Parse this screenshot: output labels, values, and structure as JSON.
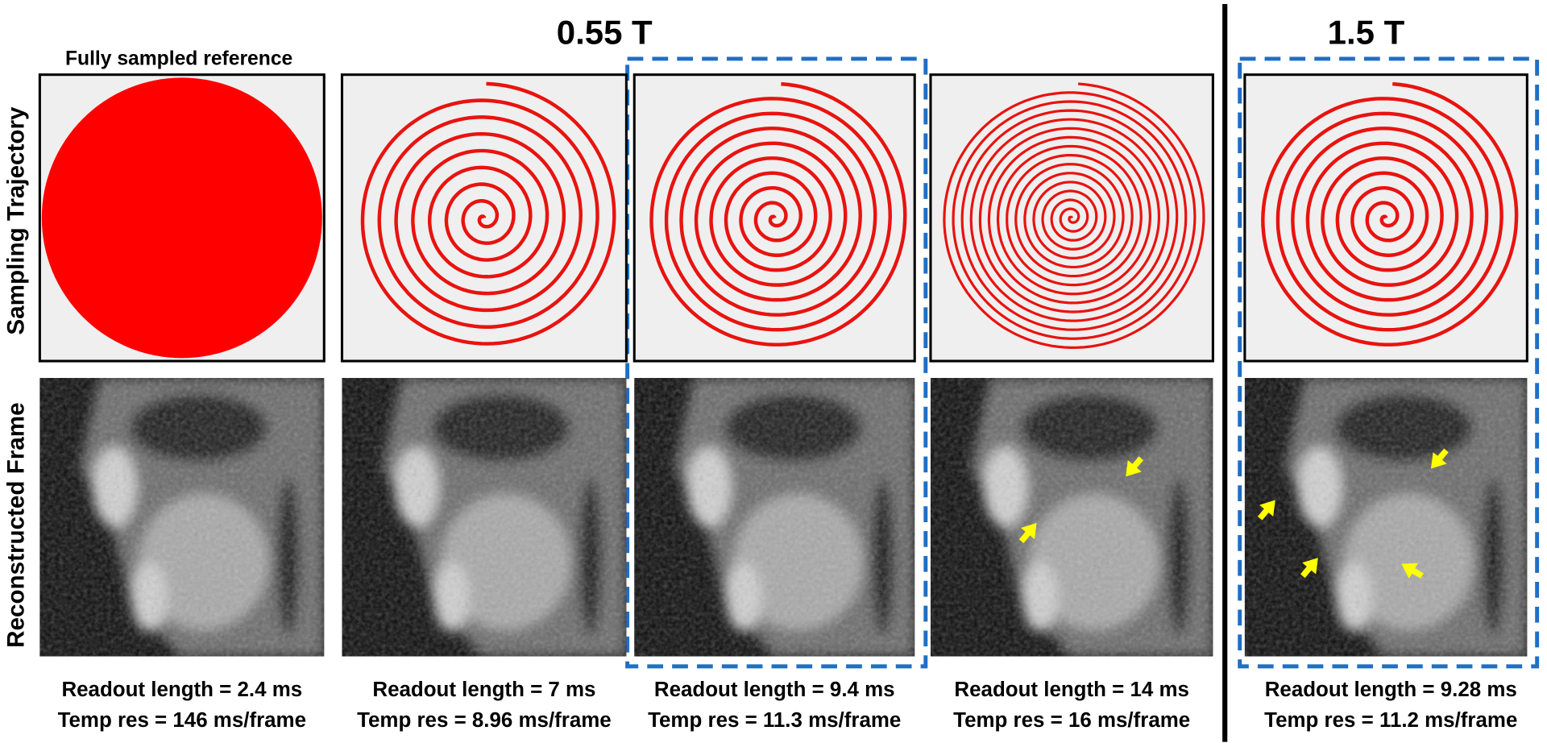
{
  "header": {
    "left_title": "0.55 T",
    "right_title": "1.5 T",
    "reference_label": "Fully sampled reference"
  },
  "row_labels": [
    "Sampling Trajectory",
    "Reconstructed Frame"
  ],
  "captions": [
    [
      "Readout length = 2.4 ms",
      "Temp res = 146 ms/frame"
    ],
    [
      "Readout length = 7 ms",
      "Temp res = 8.96 ms/frame"
    ],
    [
      "Readout length = 9.4 ms",
      "Temp res = 11.3 ms/frame"
    ],
    [
      "Readout length = 14 ms",
      "Temp res = 16 ms/frame"
    ],
    [
      "Readout length = 9.28 ms",
      "Temp res = 11.2 ms/frame"
    ]
  ]
}
